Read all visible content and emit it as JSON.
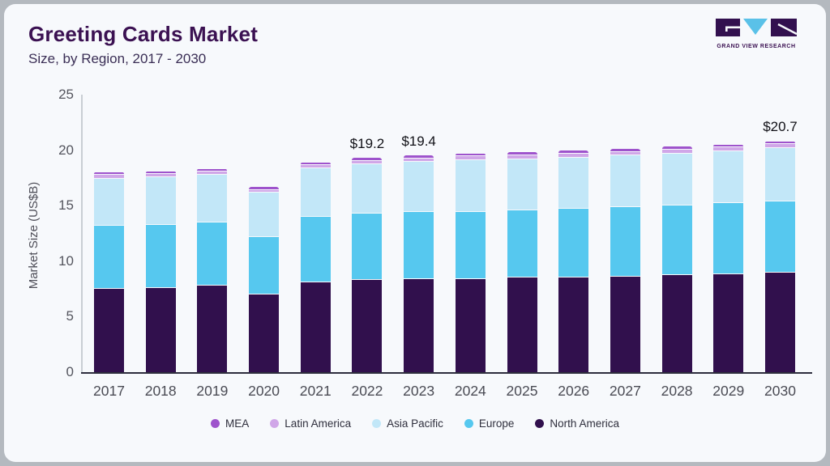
{
  "header": {
    "title": "Greeting Cards Market",
    "subtitle": "Size, by Region, 2017 - 2030",
    "logo_text": "GRAND VIEW RESEARCH"
  },
  "colors": {
    "card_background": "#f7f9fc",
    "page_background": "#b4b9bf",
    "title_text": "#3b1152",
    "axis_baseline": "#2d2d3d",
    "logo_triangle_blue": "#5ac1e8",
    "logo_block_purple": "#32104f"
  },
  "chart_data": {
    "type": "bar",
    "stacked": true,
    "title": "Greeting Cards Market",
    "subtitle": "Size, by Region, 2017 - 2030",
    "xlabel": "",
    "ylabel": "Market Size (US$B)",
    "ylim": [
      0,
      25
    ],
    "yticks": [
      0,
      5,
      10,
      15,
      20,
      25
    ],
    "grid": false,
    "legend_position": "bottom",
    "categories": [
      "2017",
      "2018",
      "2019",
      "2020",
      "2021",
      "2022",
      "2023",
      "2024",
      "2025",
      "2026",
      "2027",
      "2028",
      "2029",
      "2030"
    ],
    "series": [
      {
        "name": "North America",
        "color": "#31104d",
        "values": [
          7.5,
          7.6,
          7.8,
          7.0,
          8.1,
          8.3,
          8.35,
          8.4,
          8.5,
          8.55,
          8.6,
          8.75,
          8.85,
          9.0
        ]
      },
      {
        "name": "Europe",
        "color": "#56c8ef",
        "values": [
          5.7,
          5.7,
          5.7,
          5.2,
          5.9,
          5.95,
          6.05,
          6.05,
          6.05,
          6.15,
          6.25,
          6.25,
          6.35,
          6.35
        ]
      },
      {
        "name": "Asia Pacific",
        "color": "#c2e7f8",
        "values": [
          4.25,
          4.25,
          4.25,
          3.95,
          4.4,
          4.5,
          4.55,
          4.65,
          4.65,
          4.65,
          4.65,
          4.7,
          4.7,
          4.85
        ]
      },
      {
        "name": "Latin America",
        "color": "#d0a6e8",
        "values": [
          0.3,
          0.3,
          0.3,
          0.25,
          0.25,
          0.3,
          0.3,
          0.35,
          0.35,
          0.35,
          0.35,
          0.35,
          0.35,
          0.35
        ]
      },
      {
        "name": "MEA",
        "color": "#9e53cc",
        "values": [
          0.15,
          0.15,
          0.15,
          0.1,
          0.15,
          0.15,
          0.15,
          0.15,
          0.15,
          0.15,
          0.15,
          0.15,
          0.15,
          0.15
        ]
      }
    ],
    "totals": [
      17.9,
      18.0,
      18.2,
      16.5,
      18.8,
      19.2,
      19.4,
      19.6,
      19.7,
      19.85,
      20.0,
      20.2,
      20.4,
      20.7
    ],
    "legend": [
      "MEA",
      "Latin America",
      "Asia Pacific",
      "Europe",
      "North America"
    ],
    "annotations": [
      {
        "category": "2022",
        "text": "$19.2"
      },
      {
        "category": "2023",
        "text": "$19.4"
      },
      {
        "category": "2030",
        "text": "$20.7"
      }
    ]
  }
}
